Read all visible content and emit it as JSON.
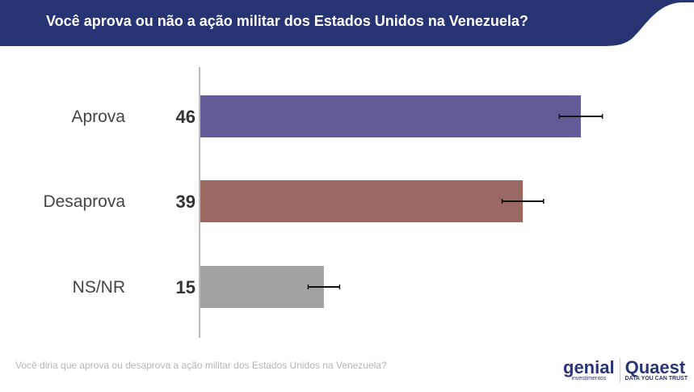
{
  "header": {
    "title": "Você aprova ou não a ação militar dos Estados Unidos na Venezuela?",
    "color": "#263473"
  },
  "chart_data": {
    "type": "bar",
    "orientation": "horizontal",
    "categories": [
      "Aprova",
      "Desaprova",
      "NS/NR"
    ],
    "values": [
      46,
      39,
      15
    ],
    "error_margins": [
      2.6,
      2.5,
      1.9
    ],
    "colors": [
      "#615c98",
      "#9a6964",
      "#a3a3a3"
    ],
    "xlim": [
      0,
      60
    ],
    "grid": false
  },
  "footnote": "Você diria que aprova ou desaprova a ação militar dos Estados Unidos na Venezuela?",
  "logos": {
    "genial": "genial",
    "genial_sub": "investimentos",
    "quaest": "Quaest",
    "quaest_sub": "DATA YOU CAN TRUST"
  }
}
